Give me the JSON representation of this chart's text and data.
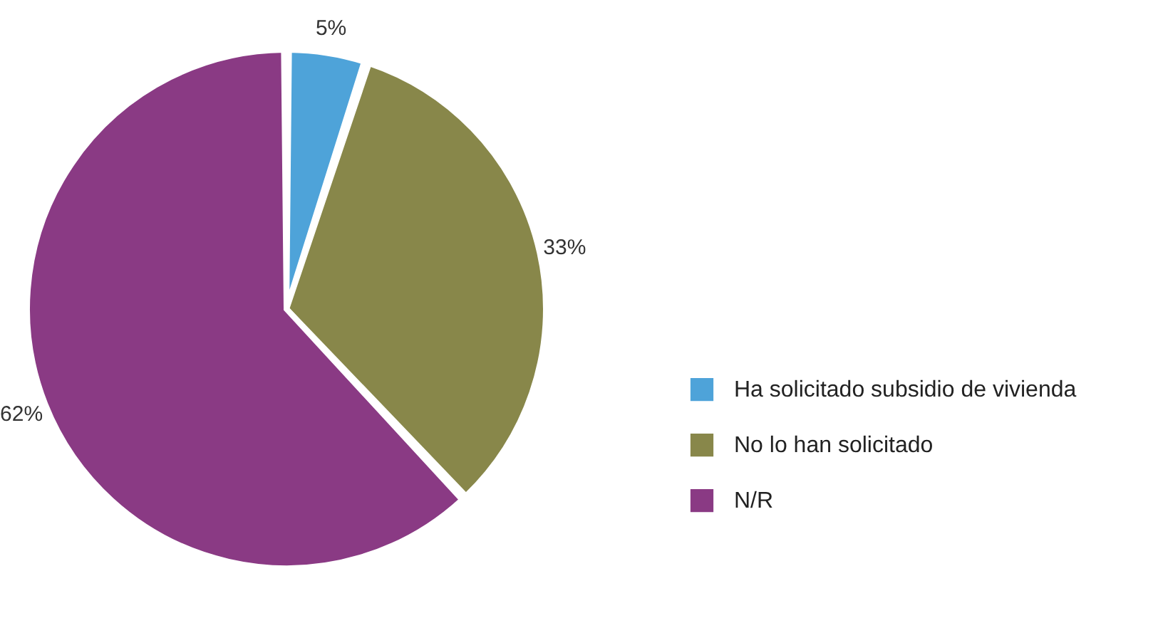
{
  "chart_data": {
    "type": "pie",
    "categories": [
      "Ha solicitado subsidio de vivienda",
      "No lo han solicitado",
      "N/R"
    ],
    "values": [
      5,
      33,
      62
    ],
    "colors": [
      "#4ea3d9",
      "#88874a",
      "#8a3a84"
    ],
    "value_labels": [
      "5%",
      "33%",
      "62%"
    ],
    "legend": "right"
  }
}
